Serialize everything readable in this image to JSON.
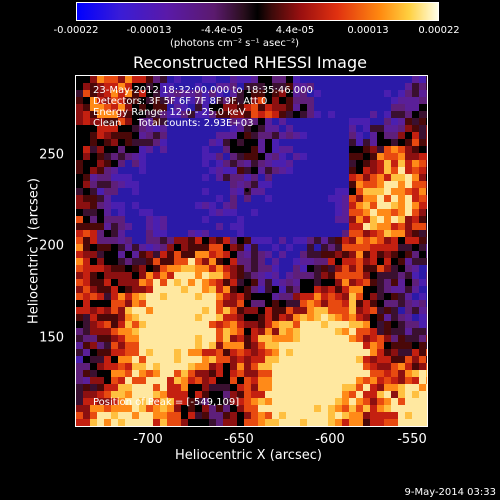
{
  "colorbar": {
    "ticks": [
      "-0.00022",
      "-0.00013",
      "-4.4e-05",
      "4.4e-05",
      "0.00013",
      "0.00022"
    ],
    "unit": "(photons cm⁻² s⁻¹ asec⁻²)"
  },
  "plot": {
    "title": "Reconstructed RHESSI Image",
    "info_lines": [
      "23-May-2012 18:32:00.000 to 18:35:46.000",
      "Detectors: 3F 5F 6F 7F 8F 9F, Att 0",
      "Energy Range: 12.0 - 25.0 keV",
      "Clean     Total counts: 2.93E+03"
    ],
    "peak_text": "Position of Peak = [-549,109]",
    "x_ticks": [
      "-700",
      "-650",
      "-600",
      "-550"
    ],
    "y_ticks": [
      "250",
      "200",
      "150"
    ],
    "x_label": "Heliocentric X (arcsec)",
    "y_label": "Heliocentric Y (arcsec)"
  },
  "footer": {
    "date": "9-May-2014 03:33"
  }
}
